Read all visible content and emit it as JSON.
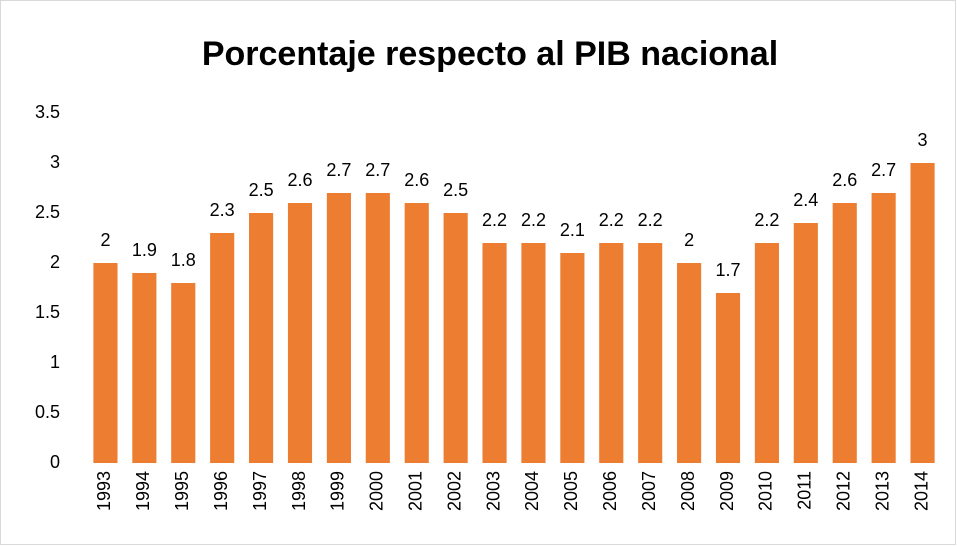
{
  "chart_data": {
    "type": "bar",
    "title": "Porcentaje respecto al PIB nacional",
    "categories": [
      "1993",
      "1994",
      "1995",
      "1996",
      "1997",
      "1998",
      "1999",
      "2000",
      "2001",
      "2002",
      "2003",
      "2004",
      "2005",
      "2006",
      "2007",
      "2008",
      "2009",
      "2010",
      "2011",
      "2012",
      "2013",
      "2014"
    ],
    "values": [
      2,
      1.9,
      1.8,
      2.3,
      2.5,
      2.6,
      2.7,
      2.7,
      2.6,
      2.5,
      2.2,
      2.2,
      2.1,
      2.2,
      2.2,
      2,
      1.7,
      2.2,
      2.4,
      2.6,
      2.7,
      3
    ],
    "color": "#ed7d31",
    "ylim": [
      0,
      3.5
    ],
    "yticks": [
      0,
      0.5,
      1,
      1.5,
      2,
      2.5,
      3,
      3.5
    ],
    "grid": false
  }
}
